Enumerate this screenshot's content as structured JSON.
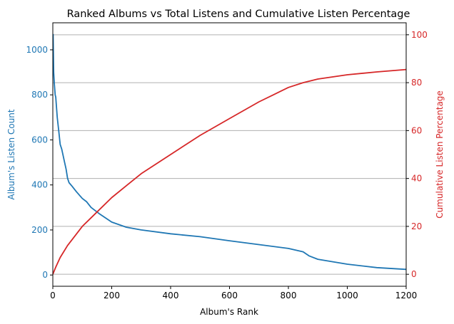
{
  "chart_data": {
    "type": "line",
    "title": "Ranked Albums vs Total Listens and Cumulative Listen Percentage",
    "xlabel": "Album's Rank",
    "ylabel_left": "Album's Listen Count",
    "ylabel_right": "Cumulative Listen Percentage",
    "xlim": [
      0,
      1200
    ],
    "ylim_left": [
      -50,
      1120
    ],
    "ylim_right": [
      -5,
      105
    ],
    "x_ticks": [
      0,
      200,
      400,
      600,
      800,
      1000,
      1200
    ],
    "y_left_ticks": [
      0,
      200,
      400,
      600,
      800,
      1000
    ],
    "y_right_ticks": [
      0,
      20,
      40,
      60,
      80,
      100
    ],
    "grid": "horizontal, aligned to right axis ticks",
    "series": [
      {
        "name": "Album's Listen Count",
        "axis": "left",
        "color": "#1f77b4",
        "x": [
          1,
          3,
          5,
          8,
          10,
          15,
          20,
          25,
          30,
          40,
          45,
          50,
          55,
          65,
          80,
          100,
          115,
          130,
          160,
          200,
          250,
          300,
          400,
          500,
          600,
          700,
          800,
          850,
          870,
          900,
          1000,
          1100,
          1200
        ],
        "values": [
          1070,
          900,
          850,
          800,
          790,
          700,
          640,
          580,
          560,
          500,
          470,
          430,
          410,
          395,
          370,
          340,
          325,
          300,
          270,
          235,
          212,
          200,
          183,
          170,
          152,
          135,
          118,
          103,
          85,
          70,
          48,
          33,
          25
        ]
      },
      {
        "name": "Cumulative Listen Percentage",
        "axis": "right",
        "color": "#d62728",
        "x": [
          0,
          10,
          25,
          50,
          100,
          150,
          200,
          250,
          300,
          400,
          500,
          600,
          700,
          800,
          850,
          900,
          1000,
          1100,
          1200
        ],
        "values": [
          0,
          3,
          7,
          12,
          20,
          26,
          32,
          37,
          42,
          50,
          58,
          65,
          72,
          78,
          80,
          81.5,
          83.3,
          84.5,
          85.5
        ]
      }
    ]
  },
  "colors": {
    "left_axis": "#1f77b4",
    "right_axis": "#d62728",
    "grid": "#b0b0b0"
  }
}
